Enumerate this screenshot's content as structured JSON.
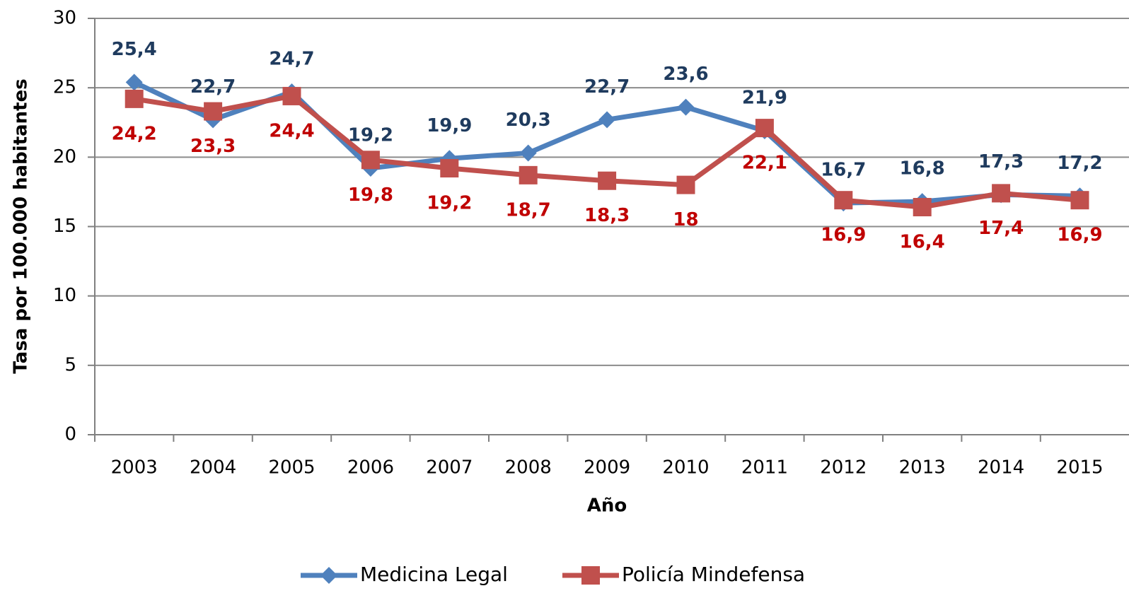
{
  "chart_data": {
    "type": "line",
    "x_label": "Año",
    "y_label": "Tasa por 100.000 habitantes",
    "categories": [
      "2003",
      "2004",
      "2005",
      "2006",
      "2007",
      "2008",
      "2009",
      "2010",
      "2011",
      "2012",
      "2013",
      "2014",
      "2015"
    ],
    "series": [
      {
        "name": "Medicina Legal",
        "color": "#4f81bd",
        "label_color": "#1f3b5e",
        "values": [
          25.4,
          22.7,
          24.7,
          19.2,
          19.9,
          20.3,
          22.7,
          23.6,
          21.9,
          16.7,
          16.8,
          17.3,
          17.2
        ],
        "value_labels": [
          "25,4",
          "22,7",
          "24,7",
          "19,2",
          "19,9",
          "20,3",
          "22,7",
          "23,6",
          "21,9",
          "16,7",
          "16,8",
          "17,3",
          "17,2"
        ]
      },
      {
        "name": "Policía Mindefensa",
        "color": "#c0504d",
        "label_color": "#c00000",
        "values": [
          24.2,
          23.3,
          24.4,
          19.8,
          19.2,
          18.7,
          18.3,
          18,
          22.1,
          16.9,
          16.4,
          17.4,
          16.9
        ],
        "value_labels": [
          "24,2",
          "23,3",
          "24,4",
          "19,8",
          "19,2",
          "18,7",
          "18,3",
          "18",
          "22,1",
          "16,9",
          "16,4",
          "17,4",
          "16,9"
        ]
      }
    ],
    "ylim": [
      0,
      30
    ],
    "yticks": [
      0,
      5,
      10,
      15,
      20,
      25,
      30
    ],
    "grid": true,
    "legend": "bottom"
  }
}
